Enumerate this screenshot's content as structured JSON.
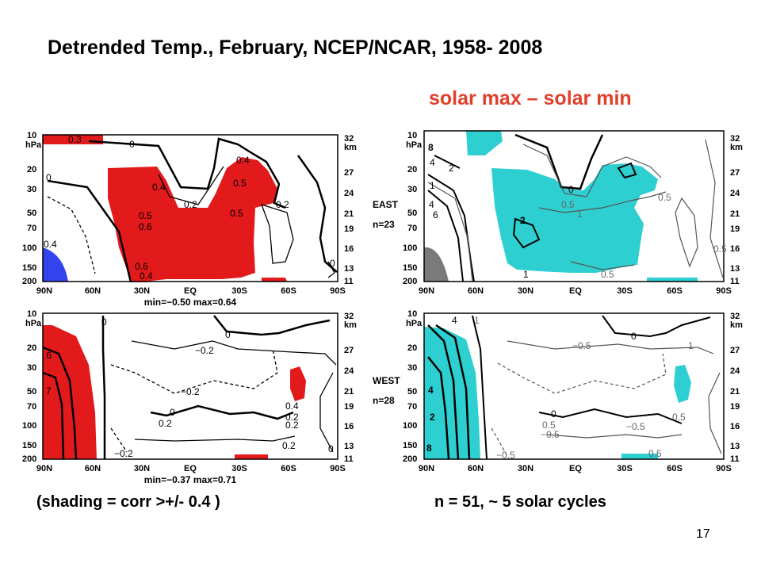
{
  "title": "Detrended Temp., February, NCEP/NCAR,  1958- 2008",
  "subtitle": "solar max – solar min",
  "shading_note": "(shading = corr >+/- 0.4 )",
  "sample_note": "n = 51, ~ 5 solar cycles",
  "page_number": "17",
  "colors": {
    "positive_corr": "#e31a1c",
    "negative_corr": "#3344ee",
    "positive_diff": "#2ecfd0",
    "negative_diff": "#7a7a7a",
    "subtitle": "#e0402a"
  },
  "chart_data": [
    {
      "type": "heatmap",
      "panel": "top-left",
      "variable": "correlation",
      "xticks": [
        "90N",
        "60N",
        "30N",
        "EQ",
        "30S",
        "60S",
        "90S"
      ],
      "yticks_left": [
        "10",
        "20",
        "30",
        "50",
        "70",
        "100",
        "150",
        "200"
      ],
      "ylabel_left": "hPa",
      "yticks_right": [
        "32",
        "27",
        "24",
        "21",
        "19",
        "16",
        "13",
        "11"
      ],
      "ylabel_right": "km",
      "contour_labels": [
        "0.3",
        "0",
        "0.4",
        "0.5",
        "0.4",
        "0.2",
        "0.5",
        "0.6",
        "0.5",
        "0.2",
        "0.4",
        "0.6",
        "0.4",
        "0",
        "0"
      ],
      "stats": "min=−0.50  max=0.64"
    },
    {
      "type": "heatmap",
      "panel": "top-right",
      "variable": "difference",
      "xticks": [
        "90N",
        "60N",
        "30N",
        "EQ",
        "30S",
        "60S",
        "90S"
      ],
      "yticks_left": [
        "10",
        "20",
        "30",
        "50",
        "70",
        "100",
        "150",
        "200"
      ],
      "ylabel_left": "hPa",
      "yticks_right": [
        "32",
        "27",
        "24",
        "21",
        "19",
        "16",
        "13",
        "11"
      ],
      "ylabel_right": "km",
      "contour_labels": [
        "8",
        "4",
        "2",
        "1",
        "4",
        "6",
        "2",
        "0",
        "0.5",
        "1",
        "0.5",
        "0.5",
        "1",
        "0.5"
      ],
      "group_label": "EAST",
      "group_n": "n=23"
    },
    {
      "type": "heatmap",
      "panel": "bottom-left",
      "variable": "correlation",
      "xticks": [
        "90N",
        "60N",
        "30N",
        "EQ",
        "30S",
        "60S",
        "90S"
      ],
      "yticks_left": [
        "10",
        "20",
        "30",
        "50",
        "70",
        "100",
        "150",
        "200"
      ],
      "ylabel_left": "hPa",
      "yticks_right": [
        "32",
        "27",
        "24",
        "21",
        "19",
        "16",
        "13",
        "11"
      ],
      "ylabel_right": "km",
      "contour_labels": [
        ".6",
        "7",
        "0",
        "−0.2",
        "0",
        "−0.2",
        "0",
        "0.2",
        "−0.2",
        "0.2",
        "0.4",
        "0.2",
        "0.2",
        "0"
      ],
      "stats": "min=−0.37  max=0.71"
    },
    {
      "type": "heatmap",
      "panel": "bottom-right",
      "variable": "difference",
      "xticks": [
        "90N",
        "60N",
        "30N",
        "EQ",
        "30S",
        "60S",
        "90S"
      ],
      "yticks_left": [
        "10",
        "20",
        "30",
        "50",
        "70",
        "100",
        "150",
        "200"
      ],
      "ylabel_left": "hPa",
      "yticks_right": [
        "32",
        "27",
        "24",
        "21",
        "19",
        "16",
        "13",
        "11"
      ],
      "ylabel_right": "km",
      "contour_labels": [
        "4",
        "1",
        "−0.5",
        "0",
        "1",
        "4",
        "2",
        "0",
        "0.5",
        "−0.5",
        "−0.5",
        "0.5",
        "8",
        "0.5",
        "−0.5"
      ],
      "group_label": "WEST",
      "group_n": "n=28"
    }
  ]
}
